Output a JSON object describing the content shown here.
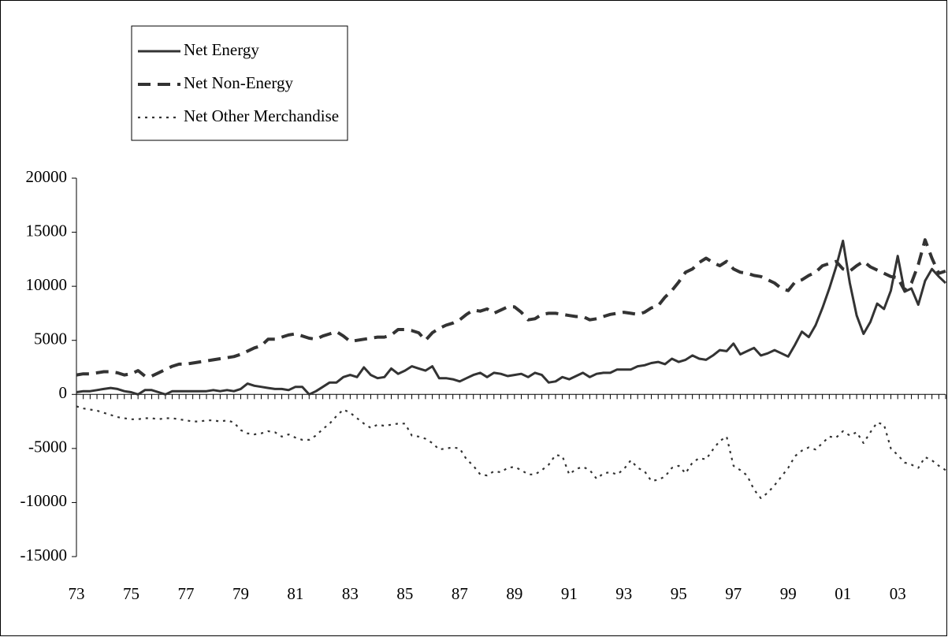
{
  "chart_data": {
    "type": "line",
    "categories": [
      "73",
      null,
      null,
      null,
      null,
      null,
      null,
      null,
      "75",
      null,
      null,
      null,
      null,
      null,
      null,
      null,
      "77",
      null,
      null,
      null,
      null,
      null,
      null,
      null,
      "79",
      null,
      null,
      null,
      null,
      null,
      null,
      null,
      "81",
      null,
      null,
      null,
      null,
      null,
      null,
      null,
      "83",
      null,
      null,
      null,
      null,
      null,
      null,
      null,
      "85",
      null,
      null,
      null,
      null,
      null,
      null,
      null,
      "87",
      null,
      null,
      null,
      null,
      null,
      null,
      null,
      "89",
      null,
      null,
      null,
      null,
      null,
      null,
      null,
      "91",
      null,
      null,
      null,
      null,
      null,
      null,
      null,
      "93",
      null,
      null,
      null,
      null,
      null,
      null,
      null,
      "95",
      null,
      null,
      null,
      null,
      null,
      null,
      null,
      "97",
      null,
      null,
      null,
      null,
      null,
      null,
      null,
      "99",
      null,
      null,
      null,
      null,
      null,
      null,
      null,
      "01",
      null,
      null,
      null,
      null,
      null,
      null,
      null,
      "03",
      null,
      null,
      null,
      null,
      null,
      null,
      null
    ],
    "series": [
      {
        "name": "Net Energy",
        "color": "#333333",
        "style": "solid",
        "values": [
          200,
          300,
          300,
          400,
          500,
          600,
          500,
          300,
          200,
          0,
          400,
          400,
          200,
          0,
          300,
          300,
          300,
          300,
          300,
          300,
          400,
          300,
          400,
          300,
          500,
          1000,
          800,
          700,
          600,
          500,
          500,
          400,
          700,
          700,
          0,
          300,
          700,
          1100,
          1100,
          1600,
          1800,
          1600,
          2500,
          1800,
          1500,
          1600,
          2400,
          1900,
          2200,
          2600,
          2400,
          2200,
          2600,
          1500,
          1500,
          1400,
          1200,
          1500,
          1800,
          2000,
          1600,
          2000,
          1900,
          1700,
          1800,
          1900,
          1600,
          2000,
          1800,
          1100,
          1200,
          1600,
          1400,
          1700,
          2000,
          1600,
          1900,
          2000,
          2000,
          2300,
          2300,
          2300,
          2600,
          2700,
          2900,
          3000,
          2800,
          3300,
          3000,
          3200,
          3600,
          3300,
          3200,
          3600,
          4100,
          4000,
          4700,
          3700,
          4000,
          4300,
          3600,
          3800,
          4100,
          3800,
          3500,
          4600,
          5800,
          5300,
          6400,
          8000,
          9800,
          11800,
          14200,
          10300,
          7300,
          5600,
          6700,
          8400,
          7900,
          9600,
          12800,
          9500,
          9800,
          8300,
          10500,
          11600,
          10900,
          10300
        ]
      },
      {
        "name": "Net Non-Energy",
        "color": "#333333",
        "style": "dashed",
        "values": [
          1800,
          1900,
          1900,
          2000,
          2100,
          2100,
          2000,
          1800,
          1900,
          2200,
          1700,
          1700,
          2000,
          2300,
          2600,
          2800,
          2800,
          2900,
          3000,
          3100,
          3200,
          3300,
          3400,
          3500,
          3700,
          4000,
          4300,
          4500,
          5100,
          5100,
          5300,
          5500,
          5600,
          5400,
          5200,
          5100,
          5400,
          5600,
          5800,
          5400,
          4900,
          5000,
          5100,
          5200,
          5300,
          5300,
          5500,
          6000,
          6000,
          5900,
          5700,
          5000,
          5700,
          6100,
          6400,
          6600,
          6900,
          7400,
          7800,
          7700,
          7900,
          7500,
          7800,
          8100,
          8100,
          7600,
          6900,
          7000,
          7400,
          7500,
          7500,
          7400,
          7300,
          7200,
          7200,
          6900,
          7000,
          7200,
          7400,
          7500,
          7600,
          7500,
          7400,
          7600,
          8000,
          8200,
          9000,
          9600,
          10400,
          11300,
          11600,
          12200,
          12600,
          12200,
          11900,
          12300,
          11600,
          11300,
          11200,
          11000,
          10900,
          10600,
          10300,
          9800,
          9600,
          10400,
          10600,
          11000,
          11300,
          11900,
          12100,
          12300,
          11600,
          11400,
          11900,
          12300,
          11800,
          11500,
          11200,
          10900,
          10800,
          9600,
          10300,
          12000,
          14300,
          12600,
          11200,
          11400
        ]
      },
      {
        "name": "Net Other Merchandise",
        "color": "#333333",
        "style": "dotted",
        "values": [
          -1100,
          -1300,
          -1400,
          -1500,
          -1700,
          -1900,
          -2100,
          -2200,
          -2300,
          -2300,
          -2200,
          -2200,
          -2300,
          -2200,
          -2200,
          -2300,
          -2400,
          -2500,
          -2500,
          -2400,
          -2400,
          -2500,
          -2400,
          -2600,
          -3300,
          -3600,
          -3700,
          -3600,
          -3400,
          -3500,
          -3900,
          -3700,
          -4000,
          -4200,
          -4200,
          -3800,
          -3200,
          -2700,
          -2000,
          -1400,
          -1700,
          -2200,
          -2700,
          -3100,
          -2800,
          -2900,
          -2800,
          -2700,
          -2700,
          -3800,
          -3900,
          -4100,
          -4500,
          -5100,
          -5000,
          -4900,
          -5000,
          -6000,
          -6600,
          -7400,
          -7500,
          -7100,
          -7200,
          -6800,
          -6700,
          -7000,
          -7400,
          -7400,
          -7000,
          -6500,
          -5600,
          -5700,
          -7400,
          -6900,
          -6700,
          -7000,
          -7800,
          -7300,
          -7200,
          -7400,
          -6900,
          -6100,
          -6800,
          -7100,
          -8000,
          -7900,
          -7600,
          -6800,
          -6600,
          -7300,
          -6300,
          -5900,
          -6000,
          -5100,
          -4300,
          -3900,
          -6600,
          -7000,
          -7500,
          -8800,
          -9600,
          -9100,
          -8400,
          -7600,
          -6800,
          -5700,
          -5200,
          -4900,
          -5100,
          -4500,
          -3900,
          -4000,
          -3400,
          -3800,
          -3500,
          -4500,
          -3500,
          -2600,
          -2800,
          -5000,
          -5600,
          -6300,
          -6500,
          -6800,
          -5800,
          -6100,
          -6600,
          -7000
        ]
      }
    ],
    "ylim": [
      -15000,
      20000
    ],
    "yticks": [
      -15000,
      -10000,
      -5000,
      0,
      5000,
      10000,
      15000,
      20000
    ],
    "legend": "upper left",
    "grid": false
  }
}
